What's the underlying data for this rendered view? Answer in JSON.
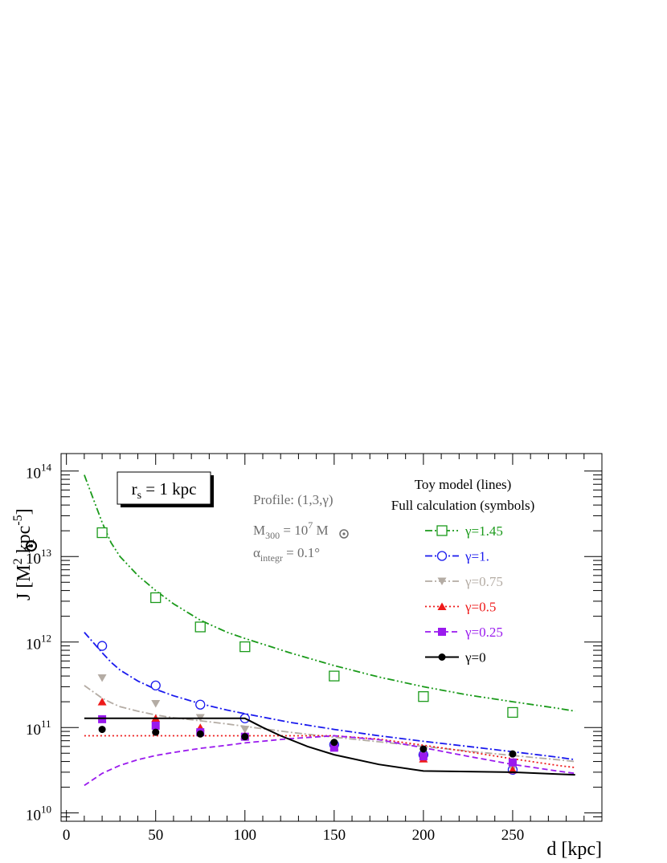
{
  "chart_data": {
    "type": "line",
    "xlabel": "d [kpc]",
    "ylabel": "J  [M",
    "ylabel_sup": "2",
    "ylabel_mid": " kpc",
    "ylabel_sup2": "-5",
    "ylabel_end": "]",
    "xlim": [
      -3,
      300
    ],
    "ylim": [
      8000000000.0,
      160000000000000.0
    ],
    "y_scale": "log",
    "x_ticks": [
      0,
      50,
      100,
      150,
      200,
      250
    ],
    "y_ticks": [
      {
        "value": 10000000000.0,
        "base": "10",
        "exp": "10"
      },
      {
        "value": 100000000000.0,
        "base": "10",
        "exp": "11"
      },
      {
        "value": 1000000000000.0,
        "base": "10",
        "exp": "12"
      },
      {
        "value": 10000000000000.0,
        "base": "10",
        "exp": "13"
      },
      {
        "value": 100000000000000.0,
        "base": "10",
        "exp": "14"
      }
    ],
    "annotation_box": {
      "base": "r",
      "sub": "s",
      "rest": " = 1 kpc"
    },
    "info": {
      "profile": "Profile: (1,3,γ)",
      "mass_base": "M",
      "mass_sub": "300",
      "mass_mid": " = 10",
      "mass_sup": "7",
      "mass_end": " M",
      "alpha_base": "α",
      "alpha_sub": "integr",
      "alpha_end": " = 0.1°"
    },
    "legend": {
      "header1": "Toy model (lines)",
      "header2": "Full calculation (symbols)",
      "placement": "top-right"
    },
    "series": [
      {
        "name": "γ=1.45",
        "color": "#1a9a1a",
        "marker": "open-square",
        "dash": "dash-dot-dot",
        "line": {
          "x": [
            10,
            20,
            25,
            30,
            40,
            50,
            60,
            75,
            90,
            100,
            125,
            150,
            175,
            200,
            225,
            250,
            275,
            285
          ],
          "y": [
            90000000000000.0,
            25000000000000.0,
            14500000000000.0,
            10000000000000.0,
            6000000000000.0,
            4000000000000.0,
            2800000000000.0,
            1800000000000.0,
            1300000000000.0,
            1100000000000.0,
            750000000000.0,
            530000000000.0,
            390000000000.0,
            300000000000.0,
            240000000000.0,
            200000000000.0,
            168000000000.0,
            155000000000.0
          ]
        },
        "points": {
          "x": [
            20,
            50,
            75,
            100,
            150,
            200,
            250
          ],
          "y": [
            19000000000000.0,
            3300000000000.0,
            1500000000000.0,
            880000000000.0,
            400000000000.0,
            230000000000.0,
            150000000000.0
          ]
        }
      },
      {
        "name": "γ=1.",
        "color": "#1a1aee",
        "marker": "open-circle",
        "dash": "dash-dot",
        "line": {
          "x": [
            10,
            20,
            25,
            30,
            40,
            50,
            60,
            75,
            90,
            100,
            125,
            150,
            175,
            200,
            225,
            250,
            275,
            285
          ],
          "y": [
            1300000000000.0,
            750000000000.0,
            580000000000.0,
            470000000000.0,
            350000000000.0,
            280000000000.0,
            235000000000.0,
            190000000000.0,
            160000000000.0,
            145000000000.0,
            115000000000.0,
            95000000000.0,
            80000000000.0,
            69000000000.0,
            60000000000.0,
            52000000000.0,
            45000000000.0,
            42000000000.0
          ]
        },
        "points": {
          "x": [
            20,
            50,
            75,
            100,
            150,
            200,
            250
          ],
          "y": [
            900000000000.0,
            310000000000.0,
            185000000000.0,
            128000000000.0,
            63000000000.0,
            48000000000.0,
            32000000000.0
          ]
        }
      },
      {
        "name": "γ=0.75",
        "color": "#b4aca4",
        "marker": "filled-triangle-down",
        "dash": "dash-dot",
        "line": {
          "x": [
            10,
            20,
            25,
            30,
            40,
            50,
            60,
            75,
            90,
            100,
            125,
            150,
            175,
            200,
            225,
            250,
            275,
            285
          ],
          "y": [
            310000000000.0,
            220000000000.0,
            195000000000.0,
            175000000000.0,
            155000000000.0,
            140000000000.0,
            130000000000.0,
            120000000000.0,
            110000000000.0,
            103000000000.0,
            88000000000.0,
            77000000000.0,
            68000000000.0,
            60000000000.0,
            53000000000.0,
            47000000000.0,
            42000000000.0,
            40000000000.0
          ]
        },
        "points": {
          "x": [
            20,
            50,
            75,
            100,
            150,
            200,
            250
          ],
          "y": [
            380000000000.0,
            190000000000.0,
            130000000000.0,
            95000000000.0,
            58000000000.0,
            45000000000.0,
            33000000000.0
          ]
        }
      },
      {
        "name": "γ=0.5",
        "color": "#ee1a1a",
        "marker": "filled-triangle-up",
        "dash": "dotted",
        "line": {
          "x": [
            10,
            50,
            100,
            150,
            175,
            200,
            225,
            250,
            275,
            285
          ],
          "y": [
            80000000000.0,
            80000000000.0,
            80000000000.0,
            80000000000.0,
            73000000000.0,
            62000000000.0,
            52000000000.0,
            43000000000.0,
            36000000000.0,
            34000000000.0
          ]
        },
        "points": {
          "x": [
            20,
            50,
            75,
            100,
            150,
            200,
            250
          ],
          "y": [
            200000000000.0,
            128000000000.0,
            100000000000.0,
            80000000000.0,
            60000000000.0,
            43000000000.0,
            32000000000.0
          ]
        }
      },
      {
        "name": "γ=0.25",
        "color": "#9a1aee",
        "marker": "filled-square",
        "dash": "dashed",
        "line": {
          "x": [
            10,
            20,
            30,
            40,
            50,
            60,
            75,
            90,
            100,
            125,
            150,
            175,
            200,
            225,
            250,
            275,
            285
          ],
          "y": [
            21000000000.0,
            29000000000.0,
            36000000000.0,
            42000000000.0,
            47000000000.0,
            51000000000.0,
            57000000000.0,
            62000000000.0,
            66000000000.0,
            74000000000.0,
            80000000000.0,
            72000000000.0,
            58000000000.0,
            46000000000.0,
            37000000000.0,
            31000000000.0,
            29000000000.0
          ]
        },
        "points": {
          "x": [
            20,
            50,
            75,
            100,
            150,
            200,
            250
          ],
          "y": [
            125000000000.0,
            105000000000.0,
            88000000000.0,
            78000000000.0,
            58000000000.0,
            46000000000.0,
            39000000000.0
          ]
        }
      },
      {
        "name": "γ=0",
        "color": "#000000",
        "marker": "filled-circle",
        "dash": "solid",
        "line": {
          "x": [
            10,
            50,
            100,
            110,
            120,
            135,
            150,
            175,
            200,
            225,
            250,
            275,
            285
          ],
          "y": [
            128000000000.0,
            128000000000.0,
            128000000000.0,
            100000000000.0,
            80000000000.0,
            60000000000.0,
            48000000000.0,
            37000000000.0,
            31000000000.0,
            30500000000.0,
            30000000000.0,
            28500000000.0,
            28000000000.0
          ]
        },
        "points": {
          "x": [
            20,
            50,
            75,
            100,
            150,
            200,
            250
          ],
          "y": [
            95000000000.0,
            88000000000.0,
            84000000000.0,
            78000000000.0,
            67000000000.0,
            56000000000.0,
            49000000000.0
          ]
        }
      }
    ]
  }
}
